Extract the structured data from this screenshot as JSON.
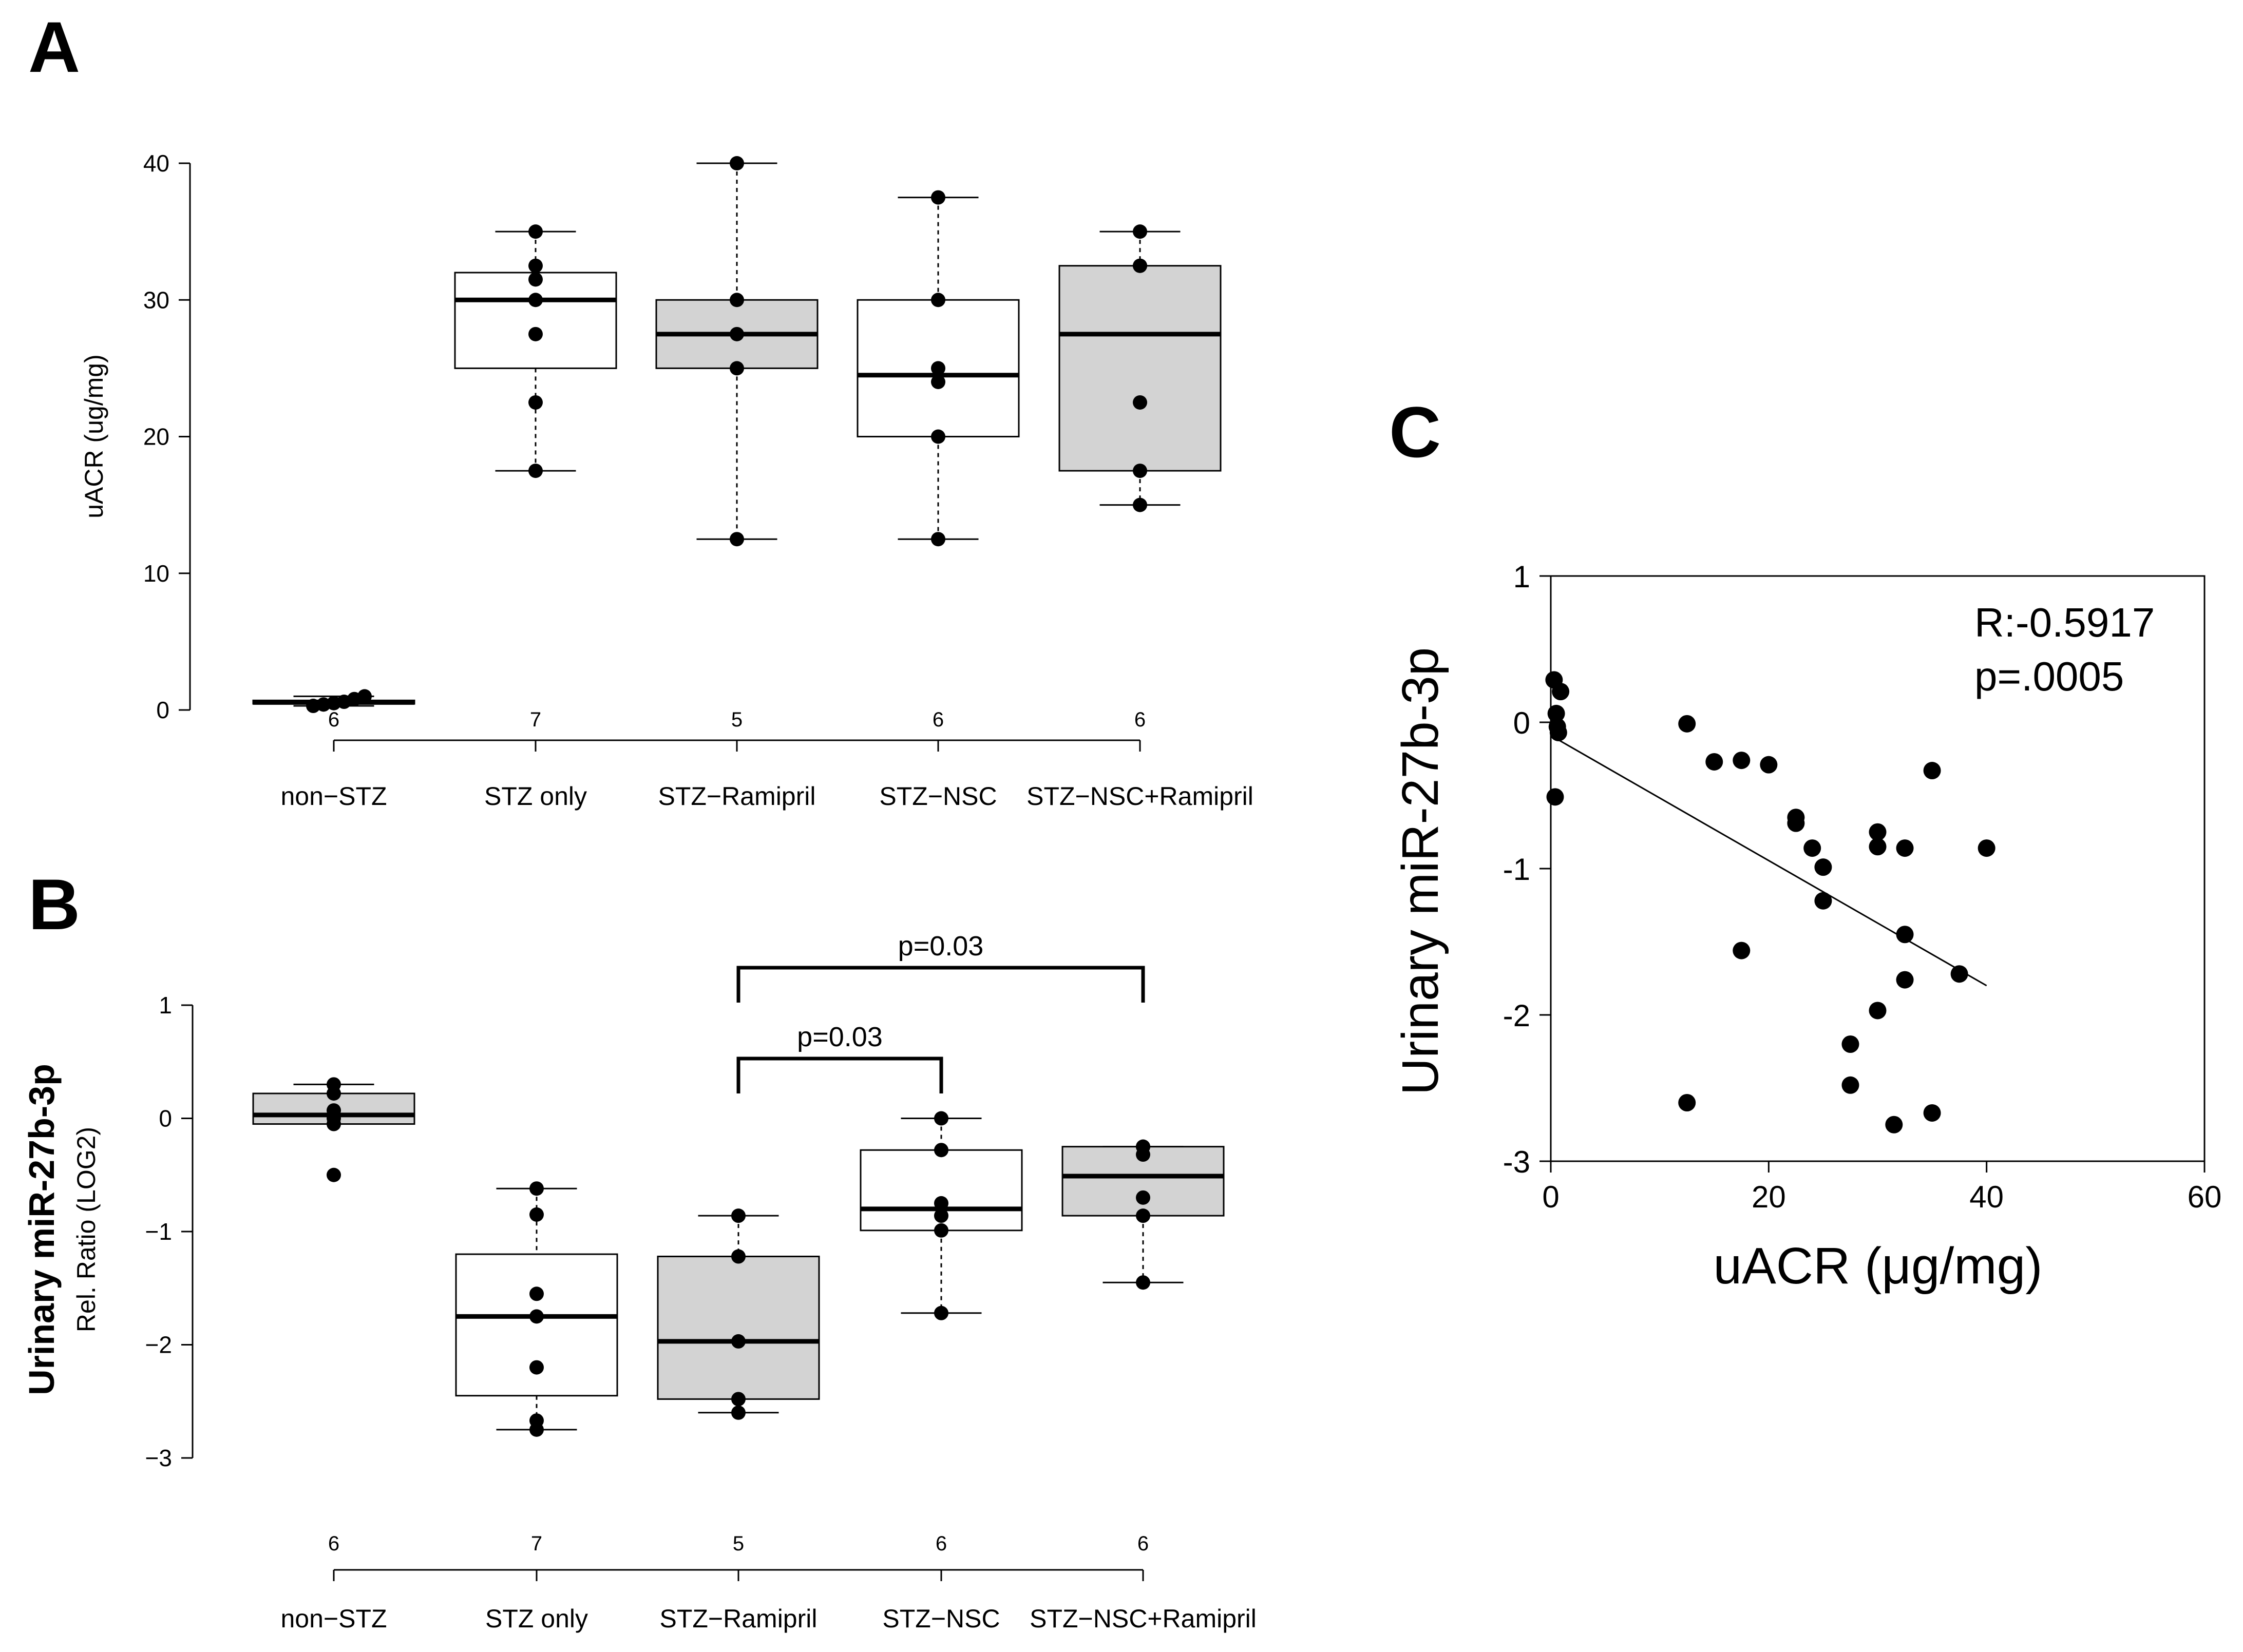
{
  "panels": {
    "a": {
      "letter": "A"
    },
    "b": {
      "letter": "B"
    },
    "c": {
      "letter": "C"
    }
  },
  "chart_data": [
    {
      "panel": "A",
      "type": "box",
      "ylabel": "uACR (ug/mg)",
      "ylim": [
        0,
        40
      ],
      "yticks": [
        0,
        10,
        20,
        30,
        40
      ],
      "categories": [
        "non−STZ",
        "STZ only",
        "STZ−Ramipril",
        "STZ−NSC",
        "STZ−NSC+Ramipril"
      ],
      "n": [
        "6",
        "7",
        "5",
        "6",
        "6"
      ],
      "fill": [
        "#ffffff",
        "#ffffff",
        "#d3d3d3",
        "#ffffff",
        "#d3d3d3"
      ],
      "boxes": [
        {
          "min": 0.3,
          "q1": 0.45,
          "median": 0.55,
          "q3": 0.7,
          "max": 1.0,
          "points": [
            0.3,
            0.4,
            0.5,
            0.6,
            0.8,
            1.0
          ]
        },
        {
          "min": 17.5,
          "q1": 25.0,
          "median": 30.0,
          "q3": 32.0,
          "max": 35.0,
          "points": [
            17.5,
            22.5,
            27.5,
            30.0,
            31.5,
            32.5,
            35.0
          ]
        },
        {
          "min": 12.5,
          "q1": 25.0,
          "median": 27.5,
          "q3": 30.0,
          "max": 40.0,
          "points": [
            12.5,
            25.0,
            27.5,
            30.0,
            40.0
          ]
        },
        {
          "min": 12.5,
          "q1": 20.0,
          "median": 24.5,
          "q3": 30.0,
          "max": 37.5,
          "points": [
            12.5,
            20.0,
            24.0,
            25.0,
            30.0,
            37.5
          ]
        },
        {
          "min": 15.0,
          "q1": 17.5,
          "median": 27.5,
          "q3": 32.5,
          "max": 35.0,
          "points": [
            15.0,
            17.5,
            22.5,
            32.5,
            32.5,
            35.0
          ]
        }
      ]
    },
    {
      "panel": "B",
      "type": "box",
      "ylabel": "Urinary miR-27b-3p",
      "ylabel2": "Rel. Ratio (LOG2)",
      "ylim": [
        -3,
        1
      ],
      "yticks": [
        -3,
        -2,
        -1,
        0,
        1
      ],
      "ytick_labels": [
        "−3",
        "−2",
        "−1",
        "0",
        "1"
      ],
      "categories": [
        "non−STZ",
        "STZ only",
        "STZ−Ramipril",
        "STZ−NSC",
        "STZ−NSC+Ramipril"
      ],
      "n": [
        "6",
        "7",
        "5",
        "6",
        "6"
      ],
      "fill": [
        "#d3d3d3",
        "#ffffff",
        "#d3d3d3",
        "#ffffff",
        "#d3d3d3"
      ],
      "boxes": [
        {
          "min": -0.05,
          "q1": -0.05,
          "median": 0.03,
          "q3": 0.22,
          "max": 0.3,
          "points": [
            -0.5,
            -0.05,
            0.0,
            0.07,
            0.22,
            0.3
          ]
        },
        {
          "min": -2.75,
          "q1": -2.45,
          "median": -1.75,
          "q3": -1.2,
          "max": -0.62,
          "points": [
            -2.75,
            -2.67,
            -2.2,
            -1.75,
            -1.55,
            -0.85,
            -0.62
          ]
        },
        {
          "min": -2.6,
          "q1": -2.48,
          "median": -1.97,
          "q3": -1.22,
          "max": -0.86,
          "points": [
            -2.6,
            -2.48,
            -1.97,
            -1.22,
            -0.86
          ]
        },
        {
          "min": -1.72,
          "q1": -0.99,
          "median": -0.8,
          "q3": -0.28,
          "max": 0.0,
          "points": [
            -1.72,
            -0.99,
            -0.86,
            -0.75,
            -0.28,
            0.0
          ]
        },
        {
          "min": -1.45,
          "q1": -0.86,
          "median": -0.51,
          "q3": -0.25,
          "max": -0.25,
          "points": [
            -1.45,
            -0.86,
            -0.7,
            -0.32,
            -0.25,
            -0.25
          ]
        }
      ],
      "annotations": [
        {
          "text": "p=0.03",
          "from": 2,
          "to": 4
        },
        {
          "text": "p=0.03",
          "from": 2,
          "to": 3
        }
      ]
    },
    {
      "panel": "C",
      "type": "scatter",
      "xlabel": "uACR (μg/mg)",
      "ylabel": "Urinary miR-27b-3p",
      "xlim": [
        0,
        60
      ],
      "ylim": [
        -3,
        1
      ],
      "xticks": [
        0,
        20,
        40,
        60
      ],
      "yticks": [
        -3,
        -2,
        -1,
        0,
        1
      ],
      "stats": [
        "R:-0.5917",
        "p=.0005"
      ],
      "fit": {
        "x": [
          0,
          40
        ],
        "y": [
          -0.09,
          -1.8
        ]
      },
      "points": [
        {
          "x": 0.3,
          "y": 0.29
        },
        {
          "x": 0.9,
          "y": 0.21
        },
        {
          "x": 0.5,
          "y": 0.06
        },
        {
          "x": 0.6,
          "y": -0.03
        },
        {
          "x": 0.7,
          "y": -0.07
        },
        {
          "x": 0.4,
          "y": -0.51
        },
        {
          "x": 12.5,
          "y": -0.01
        },
        {
          "x": 12.5,
          "y": -2.6
        },
        {
          "x": 15.0,
          "y": -0.27
        },
        {
          "x": 17.5,
          "y": -0.26
        },
        {
          "x": 17.5,
          "y": -1.56
        },
        {
          "x": 20.0,
          "y": -0.29
        },
        {
          "x": 22.5,
          "y": -0.65
        },
        {
          "x": 22.5,
          "y": -0.69
        },
        {
          "x": 24.0,
          "y": -0.86
        },
        {
          "x": 25.0,
          "y": -0.99
        },
        {
          "x": 25.0,
          "y": -1.22
        },
        {
          "x": 27.5,
          "y": -2.2
        },
        {
          "x": 27.5,
          "y": -2.48
        },
        {
          "x": 30.0,
          "y": -0.75
        },
        {
          "x": 30.0,
          "y": -0.85
        },
        {
          "x": 30.0,
          "y": -1.97
        },
        {
          "x": 31.5,
          "y": -2.75
        },
        {
          "x": 32.5,
          "y": -0.86
        },
        {
          "x": 32.5,
          "y": -1.45
        },
        {
          "x": 32.5,
          "y": -1.76
        },
        {
          "x": 35.0,
          "y": -0.33
        },
        {
          "x": 35.0,
          "y": -2.67
        },
        {
          "x": 37.5,
          "y": -1.72
        },
        {
          "x": 40.0,
          "y": -0.86
        }
      ]
    }
  ]
}
